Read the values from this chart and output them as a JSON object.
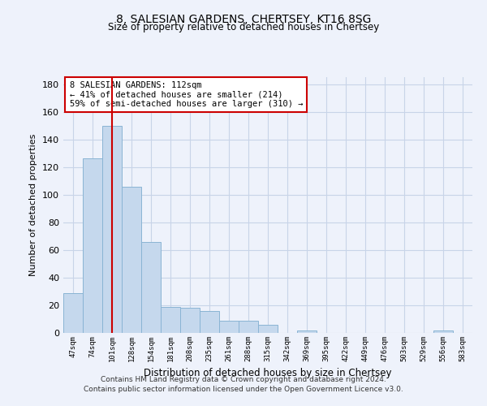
{
  "title_line1": "8, SALESIAN GARDENS, CHERTSEY, KT16 8SG",
  "title_line2": "Size of property relative to detached houses in Chertsey",
  "xlabel": "Distribution of detached houses by size in Chertsey",
  "ylabel": "Number of detached properties",
  "bar_color": "#c5d8ed",
  "bar_edge_color": "#8ab4d4",
  "categories": [
    "47sqm",
    "74sqm",
    "101sqm",
    "128sqm",
    "154sqm",
    "181sqm",
    "208sqm",
    "235sqm",
    "261sqm",
    "288sqm",
    "315sqm",
    "342sqm",
    "369sqm",
    "395sqm",
    "422sqm",
    "449sqm",
    "476sqm",
    "503sqm",
    "529sqm",
    "556sqm",
    "583sqm"
  ],
  "values": [
    29,
    126,
    150,
    106,
    66,
    19,
    18,
    16,
    9,
    9,
    6,
    0,
    2,
    0,
    0,
    0,
    0,
    0,
    0,
    2,
    0
  ],
  "ylim": [
    0,
    185
  ],
  "yticks": [
    0,
    20,
    40,
    60,
    80,
    100,
    120,
    140,
    160,
    180
  ],
  "red_line_x": 2,
  "annotation_text": "8 SALESIAN GARDENS: 112sqm\n← 41% of detached houses are smaller (214)\n59% of semi-detached houses are larger (310) →",
  "annotation_box_color": "white",
  "annotation_border_color": "#cc0000",
  "red_line_color": "#cc0000",
  "grid_color": "#c8d4e8",
  "footer_line1": "Contains HM Land Registry data © Crown copyright and database right 2024.",
  "footer_line2": "Contains public sector information licensed under the Open Government Licence v3.0.",
  "bg_color": "#eef2fb"
}
